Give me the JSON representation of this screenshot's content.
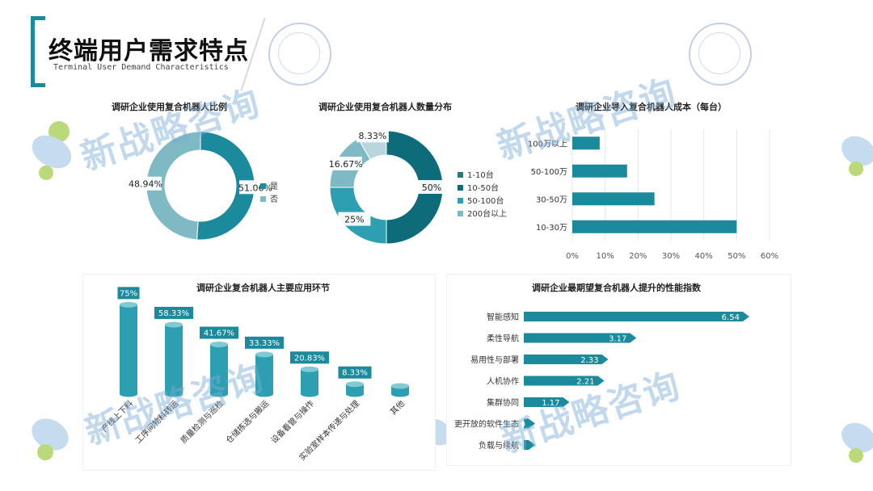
{
  "header": {
    "title": "终端用户需求特点",
    "subtitle": "Terminal User Demand Characteristics"
  },
  "watermark": {
    "text": "新战略咨询"
  },
  "colors": {
    "primary": "#1b8a9c",
    "dark": "#0e6b79",
    "mid": "#2e9fb0",
    "light": "#7fb9c4",
    "pale": "#b8d6dc",
    "grid": "#e6e6e6"
  },
  "chart_data": [
    {
      "type": "pie",
      "title": "调研企业使用复合机器人比例",
      "series": [
        {
          "name": "是",
          "value": 51.06,
          "label": "51.06%"
        },
        {
          "name": "否",
          "value": 48.94,
          "label": "48.94%"
        }
      ],
      "legend": "right"
    },
    {
      "type": "pie",
      "title": "调研企业使用复合机器人数量分布",
      "series": [
        {
          "name": "1-10台",
          "value": 0,
          "label": ""
        },
        {
          "name": "10-50台",
          "value": 50,
          "label": "50%"
        },
        {
          "name": "50-100台",
          "value": 25,
          "label": "25%"
        },
        {
          "name": "200台以上",
          "value": 16.67,
          "label": "16.67%"
        },
        {
          "name": "",
          "value": 8.33,
          "label": "8.33%"
        }
      ],
      "legend": "right"
    },
    {
      "type": "bar",
      "orientation": "horizontal",
      "title": "调研企业导入复合机器人成本（每台）",
      "categories": [
        "100万以上",
        "50-100万",
        "30-50万",
        "10-30万"
      ],
      "values": [
        8.33,
        16.67,
        25,
        50
      ],
      "xlim": [
        0,
        60
      ],
      "ticks": [
        "0%",
        "10%",
        "20%",
        "30%",
        "40%",
        "50%",
        "60%"
      ],
      "grid": true
    },
    {
      "type": "bar",
      "title": "调研企业复合机器人主要应用环节",
      "categories": [
        "产线上下料",
        "工序间物料转运",
        "质量检测与巡检",
        "仓储拣选与搬运",
        "设备看管与操作",
        "实验室样本传递与处理",
        "其他"
      ],
      "values": [
        75,
        58.33,
        41.67,
        33.33,
        20.83,
        8.33,
        0
      ],
      "labels": [
        "75%",
        "58.33%",
        "41.67%",
        "33.33%",
        "20.83%",
        "8.33%",
        ""
      ],
      "ylim": [
        0,
        80
      ]
    },
    {
      "type": "bar",
      "orientation": "horizontal",
      "title": "调研企业最期望复合机器人提升的性能指数",
      "categories": [
        "智能感知",
        "柔性导航",
        "易用性与部署",
        "人机协作",
        "集群协同",
        "更开放的软件生态",
        "负载与续航"
      ],
      "values": [
        6.54,
        3.17,
        2.33,
        2.21,
        1.17,
        0,
        0
      ],
      "labels": [
        "6.54",
        "3.17",
        "2.33",
        "2.21",
        "1.17",
        "0",
        ""
      ],
      "xlim": [
        0,
        7
      ]
    }
  ]
}
